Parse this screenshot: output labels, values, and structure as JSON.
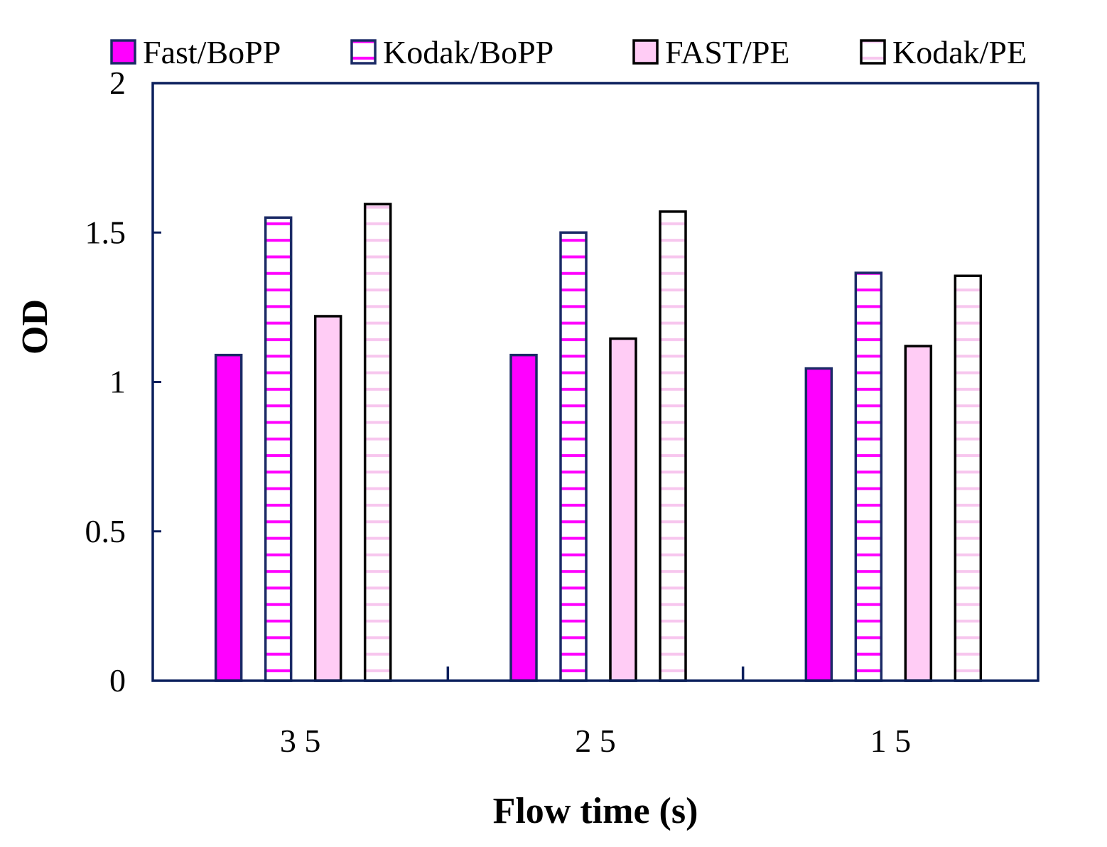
{
  "chart_data": {
    "type": "bar",
    "title": "",
    "xlabel": "Flow time (s)",
    "ylabel": "OD",
    "categories": [
      "3 5",
      "2 5",
      "1 5"
    ],
    "series": [
      {
        "name": "Fast/BoPP",
        "values": [
          1.09,
          1.09,
          1.045
        ]
      },
      {
        "name": "Kodak/BoPP",
        "values": [
          1.55,
          1.5,
          1.365
        ]
      },
      {
        "name": "FAST/PE",
        "values": [
          1.22,
          1.145,
          1.12
        ]
      },
      {
        "name": "Kodak/PE",
        "values": [
          1.595,
          1.57,
          1.355
        ]
      }
    ],
    "ylim": [
      0,
      2
    ],
    "yticks": [
      "0",
      "0.5",
      "1",
      "1.5",
      "2"
    ],
    "ytick_values": [
      0,
      0.5,
      1,
      1.5,
      2
    ],
    "grid": false,
    "legend_position": "top"
  },
  "colors": {
    "axis": "#0a1f5c",
    "magenta": "#ff00ff",
    "light_pink": "#ffccf5",
    "faint_pink": "#f7c6ee",
    "navy": "#1b2a66",
    "black": "#000000",
    "white": "#ffffff"
  },
  "series_styles": [
    "solid-magenta",
    "white-magenta-stripes-navy-border",
    "solid-light-pink",
    "white-pink-stripes-black-border"
  ]
}
